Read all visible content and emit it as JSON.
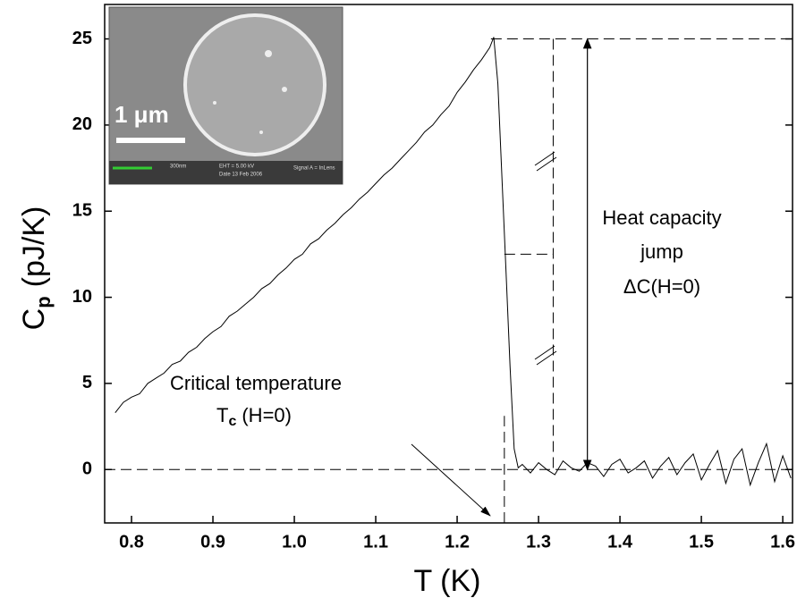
{
  "chart_data": {
    "type": "line",
    "x_label": "T (K)",
    "y_label": {
      "main": "C",
      "sub": "p",
      "unit": "(pJ/K)"
    },
    "color": "#000000",
    "xlim": [
      0.767,
      1.612
    ],
    "ylim": [
      -3.1,
      27
    ],
    "xticks": [
      0.8,
      0.9,
      {
        "value": 1,
        "label": "1.0"
      },
      1.1,
      1.2,
      1.3,
      1.4,
      1.5,
      1.6
    ],
    "yticks": [
      0,
      5,
      10,
      15,
      20,
      25
    ],
    "x": [
      0.78,
      0.79,
      0.8,
      0.81,
      0.82,
      0.83,
      0.84,
      0.85,
      0.86,
      0.87,
      0.88,
      0.89,
      0.9,
      0.91,
      0.92,
      0.93,
      0.94,
      0.95,
      0.96,
      0.97,
      0.98,
      0.99,
      1.0,
      1.01,
      1.02,
      1.03,
      1.04,
      1.05,
      1.06,
      1.07,
      1.08,
      1.09,
      1.1,
      1.11,
      1.12,
      1.13,
      1.14,
      1.15,
      1.16,
      1.17,
      1.18,
      1.19,
      1.2,
      1.21,
      1.22,
      1.23,
      1.24,
      1.245,
      1.25,
      1.255,
      1.26,
      1.265,
      1.27,
      1.275,
      1.28,
      1.29,
      1.3,
      1.31,
      1.32,
      1.33,
      1.34,
      1.35,
      1.36,
      1.37,
      1.38,
      1.39,
      1.4,
      1.41,
      1.42,
      1.43,
      1.44,
      1.45,
      1.46,
      1.47,
      1.48,
      1.49,
      1.5,
      1.51,
      1.52,
      1.53,
      1.54,
      1.55,
      1.56,
      1.57,
      1.58,
      1.59,
      1.6,
      1.61
    ],
    "values": [
      3.3,
      3.9,
      4.2,
      4.4,
      5.0,
      5.3,
      5.6,
      6.1,
      6.3,
      6.8,
      7.1,
      7.6,
      8.0,
      8.3,
      8.9,
      9.2,
      9.6,
      10.0,
      10.5,
      10.8,
      11.3,
      11.7,
      12.2,
      12.5,
      13.1,
      13.4,
      13.9,
      14.3,
      14.8,
      15.2,
      15.7,
      16.1,
      16.6,
      17.1,
      17.5,
      18.0,
      18.5,
      19.0,
      19.6,
      20.0,
      20.6,
      21.1,
      21.9,
      22.5,
      23.2,
      23.8,
      24.5,
      25.1,
      22.4,
      17.0,
      11.5,
      6.0,
      1.2,
      0.1,
      0.3,
      -0.2,
      0.4,
      0.0,
      -0.3,
      0.5,
      0.1,
      -0.1,
      0.4,
      0.2,
      -0.4,
      0.3,
      0.6,
      -0.2,
      0.1,
      0.5,
      -0.5,
      0.2,
      0.7,
      -0.3,
      0.4,
      0.9,
      -0.6,
      0.3,
      1.1,
      -0.8,
      0.6,
      1.2,
      -0.9,
      0.4,
      1.5,
      -0.7,
      0.8,
      -0.5
    ],
    "guides": {
      "tc_x": 1.258,
      "jump_top": 25,
      "dashed_x": 1.318,
      "half_y": 12.5,
      "arrow_x": 1.36,
      "zero_y": 0
    },
    "annotations": {
      "tc_line1": "Critical temperature",
      "tc_T": "T",
      "tc_sub": "c",
      "tc_rest": "(H=0)",
      "jump_line1": "Heat capacity",
      "jump_line2": "jump",
      "jump_line3": "ΔC(H=0)"
    }
  },
  "inset": {
    "scale": "1 μm",
    "mag": "300nm",
    "eht": "EHT = 5.00 kV",
    "date": "Date 13 Feb 2006",
    "signal": "Signal A = InLens"
  }
}
